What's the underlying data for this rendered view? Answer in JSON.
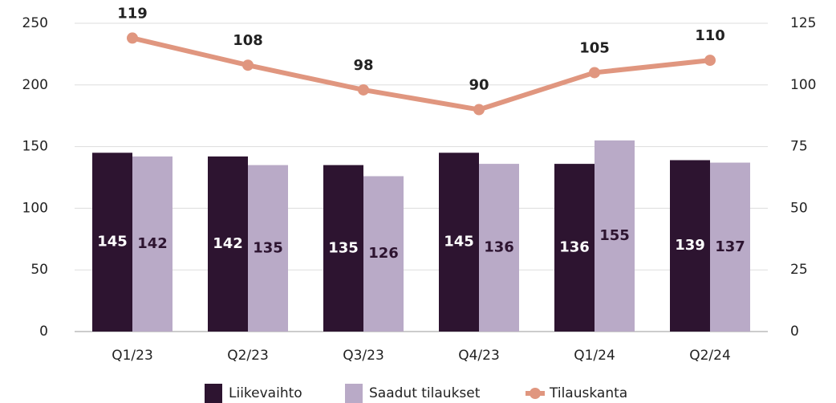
{
  "chart_data": {
    "type": "bar",
    "categories": [
      "Q1/23",
      "Q2/23",
      "Q3/23",
      "Q4/23",
      "Q1/24",
      "Q2/24"
    ],
    "series": [
      {
        "name": "Liikevaihto",
        "color": "#2d1430",
        "values": [
          145,
          142,
          135,
          145,
          136,
          139
        ]
      },
      {
        "name": "Saadut tilaukset",
        "color": "#b9aac7",
        "values": [
          142,
          135,
          126,
          136,
          155,
          137
        ]
      },
      {
        "name": "Tilauskanta",
        "color": "#e0967f",
        "type": "line",
        "axis": "y2",
        "values": [
          119,
          108,
          98,
          90,
          105,
          110
        ]
      }
    ],
    "ylim": [
      0,
      250
    ],
    "yticks": [
      0,
      50,
      100,
      150,
      200,
      250
    ],
    "y2lim": [
      0,
      125
    ],
    "y2ticks": [
      0,
      25,
      50,
      75,
      100,
      125
    ],
    "grid": true,
    "legend": "bottom"
  }
}
